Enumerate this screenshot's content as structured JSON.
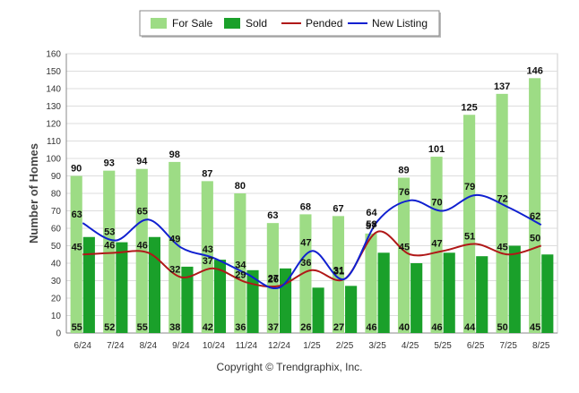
{
  "chart_data": {
    "type": "bar",
    "ylabel": "Number of Homes",
    "ylim": [
      0,
      160
    ],
    "yticks": [
      0,
      10,
      20,
      30,
      40,
      50,
      60,
      70,
      80,
      90,
      100,
      110,
      120,
      130,
      140,
      150,
      160
    ],
    "grid": true,
    "legend_position": "top",
    "categories": [
      "6/24",
      "7/24",
      "8/24",
      "9/24",
      "10/24",
      "11/24",
      "12/24",
      "1/25",
      "2/25",
      "3/25",
      "4/25",
      "5/25",
      "6/25",
      "7/25",
      "8/25"
    ],
    "series": [
      {
        "name": "For Sale",
        "kind": "bar",
        "color": "#9ddc85",
        "values": [
          90,
          93,
          94,
          98,
          87,
          80,
          63,
          68,
          67,
          57,
          89,
          101,
          125,
          137,
          146
        ]
      },
      {
        "name": "Sold",
        "kind": "bar",
        "color": "#1aa02a",
        "values": [
          55,
          52,
          55,
          38,
          42,
          36,
          37,
          26,
          27,
          46,
          40,
          46,
          44,
          50,
          45
        ]
      },
      {
        "name": "Pended",
        "kind": "line",
        "color": "#b01818",
        "values": [
          45,
          46,
          46,
          32,
          37,
          29,
          27,
          36,
          31,
          58,
          45,
          47,
          51,
          45,
          50
        ]
      },
      {
        "name": "New Listing",
        "kind": "line",
        "color": "#1020d0",
        "values": [
          63,
          53,
          65,
          49,
          43,
          34,
          26,
          47,
          31,
          64,
          76,
          70,
          79,
          72,
          62
        ]
      }
    ]
  },
  "copyright": "Copyright © Trendgraphix, Inc."
}
